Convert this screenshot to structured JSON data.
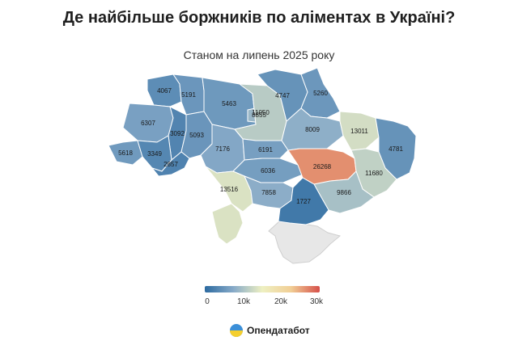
{
  "title": "Де найбільше боржників по аліментах в Україні?",
  "subtitle": "Станом на липень 2025 року",
  "legend": {
    "ticks": [
      "0",
      "10k",
      "20k",
      "30k"
    ],
    "stops": [
      "#2c6aa0",
      "#87aac8",
      "#eef0c2",
      "#f1ce95",
      "#d6504a"
    ]
  },
  "colors": {
    "occupied": "#e7e7e7",
    "border": "#ffffff"
  },
  "regions": [
    {
      "id": "volyn",
      "value": "4067"
    },
    {
      "id": "rivne",
      "value": "5191"
    },
    {
      "id": "zhytomyr",
      "value": "5463"
    },
    {
      "id": "kyiv_region",
      "value": "11050"
    },
    {
      "id": "kyiv_city",
      "value": "8855"
    },
    {
      "id": "chernihiv",
      "value": "4747"
    },
    {
      "id": "sumy",
      "value": "5260"
    },
    {
      "id": "lviv",
      "value": "6307"
    },
    {
      "id": "ternopil",
      "value": "3092"
    },
    {
      "id": "khmelnytskyi",
      "value": "5093"
    },
    {
      "id": "vinnytsia",
      "value": "7176"
    },
    {
      "id": "cherkasy",
      "value": "6191"
    },
    {
      "id": "poltava",
      "value": "8009"
    },
    {
      "id": "kharkiv",
      "value": "13011"
    },
    {
      "id": "luhansk",
      "value": "4781"
    },
    {
      "id": "zakarpattia",
      "value": "5618"
    },
    {
      "id": "ivano_frankivsk",
      "value": "3349"
    },
    {
      "id": "chernivtsi",
      "value": "2857"
    },
    {
      "id": "kirovohrad",
      "value": "6036"
    },
    {
      "id": "dnipro",
      "value": "26268"
    },
    {
      "id": "donetsk",
      "value": "11680"
    },
    {
      "id": "odesa",
      "value": "13516"
    },
    {
      "id": "mykolaiv",
      "value": "7858"
    },
    {
      "id": "zaporizhzhia",
      "value": "9866"
    },
    {
      "id": "kherson",
      "value": "1727"
    }
  ],
  "brand": {
    "name": "Опендатабот",
    "logo_icon": "opendatabot-logo"
  }
}
